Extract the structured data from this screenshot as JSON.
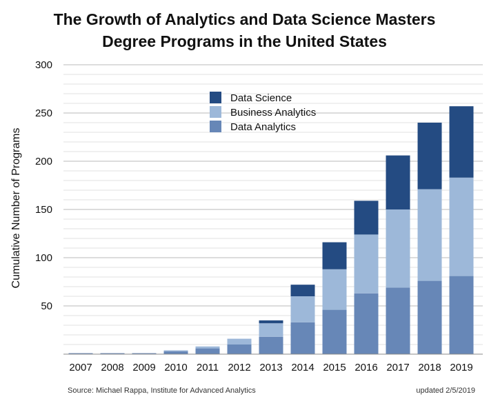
{
  "chart_data": {
    "type": "bar",
    "stacked": true,
    "title_line1": "The Growth of Analytics and Data Science Masters",
    "title_line2": "Degree Programs in the United States",
    "ylabel": "Cumulative Number of Programs",
    "xlabel": "",
    "ylim": [
      0,
      300
    ],
    "yticks": [
      "300",
      "250",
      "200",
      "150",
      "100",
      "50"
    ],
    "ytick_values": [
      300,
      250,
      200,
      150,
      100,
      50
    ],
    "minor_grid_step": 10,
    "categories": [
      "2007",
      "2008",
      "2009",
      "2010",
      "2011",
      "2012",
      "2013",
      "2014",
      "2015",
      "2016",
      "2017",
      "2018",
      "2019"
    ],
    "series": [
      {
        "name": "Data Analytics",
        "color": "#6787b7",
        "values": [
          1,
          1,
          1,
          3,
          6,
          10,
          18,
          33,
          46,
          63,
          69,
          76,
          81
        ]
      },
      {
        "name": "Business Analytics",
        "color": "#9db8d9",
        "values": [
          0,
          0,
          0,
          1,
          2,
          6,
          14,
          27,
          42,
          61,
          81,
          95,
          102
        ]
      },
      {
        "name": "Data Science",
        "color": "#244b82",
        "values": [
          0,
          0,
          0,
          0,
          0,
          0,
          3,
          12,
          28,
          35,
          56,
          69,
          74
        ]
      }
    ],
    "legend": [
      {
        "name": "Data Science",
        "color": "#244b82"
      },
      {
        "name": "Business Analytics",
        "color": "#9db8d9"
      },
      {
        "name": "Data Analytics",
        "color": "#6787b7"
      }
    ],
    "legend_position": "top-center"
  },
  "footer": {
    "source": "Source: Michael Rappa, Institute for Advanced Analytics",
    "updated": "updated 2/5/2019"
  }
}
